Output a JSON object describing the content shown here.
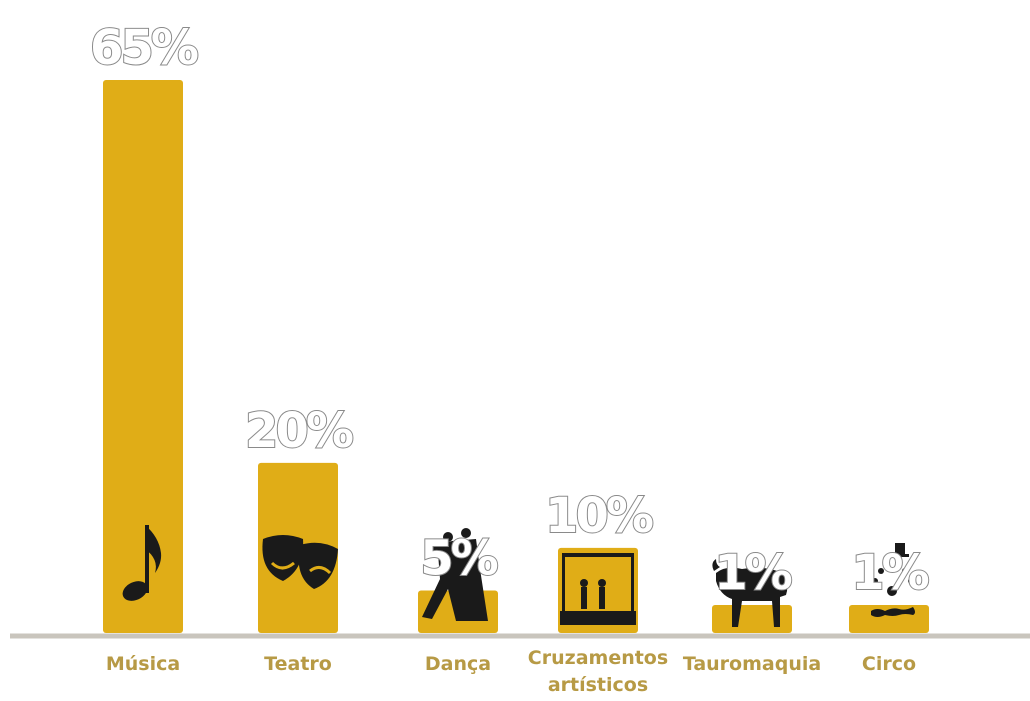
{
  "chart_data": {
    "type": "bar",
    "categories": [
      "Música",
      "Teatro",
      "Dança",
      "Cruzamentos artísticos",
      "Tauromaquia",
      "Circo"
    ],
    "category_lines": [
      [
        "Música"
      ],
      [
        "Teatro"
      ],
      [
        "Dança"
      ],
      [
        "Cruzamentos",
        "artísticos"
      ],
      [
        "Tauromaquia"
      ],
      [
        "Circo"
      ]
    ],
    "values": [
      65,
      20,
      5,
      10,
      1,
      1
    ],
    "value_labels": [
      "65%",
      "20%",
      "5%",
      "10%",
      "1%",
      "1%"
    ],
    "icons": [
      "music-note-icon",
      "theater-masks-icon",
      "dancing-couple-icon",
      "stage-performers-icon",
      "bull-icon",
      "clown-icon"
    ],
    "ylim": [
      0,
      65
    ],
    "grid": false,
    "legend": "none",
    "colors": {
      "bar": "#e0ad17",
      "baseline": "#c9c5bd",
      "label": "#b79a45",
      "value_stroke": "#8a8a8a"
    }
  }
}
